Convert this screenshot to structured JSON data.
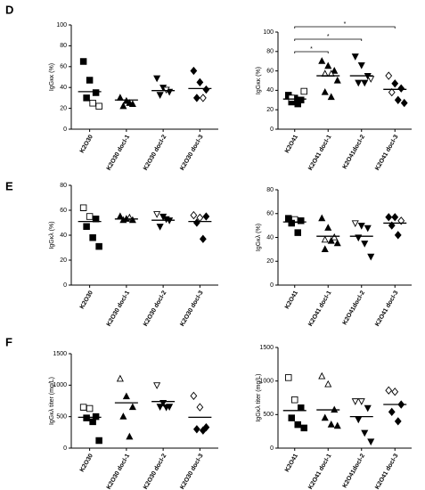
{
  "panel_labels": [
    "D",
    "E",
    "F"
  ],
  "chart_data": [
    {
      "type": "dot",
      "ylabel": "IgGκκ (%)",
      "ylim": [
        0,
        100
      ],
      "yticks": [
        0,
        20,
        40,
        60,
        80,
        100
      ],
      "categories": [
        "K2O30",
        "K2O30 docl-1",
        "K2O30 docl-2",
        "K2O30 docl-3"
      ],
      "markers": [
        "square",
        "triangle-up",
        "triangle-down",
        "diamond"
      ],
      "color": "#000000",
      "points": [
        [
          65,
          47,
          35,
          30,
          25,
          22
        ],
        [
          30,
          27,
          24,
          22,
          25
        ],
        [
          49,
          40,
          36,
          33,
          38
        ],
        [
          56,
          45,
          38,
          30,
          30
        ]
      ],
      "open": [
        [
          false,
          false,
          false,
          false,
          true,
          true
        ],
        [
          false,
          false,
          false,
          false,
          false
        ],
        [
          false,
          false,
          false,
          false,
          true
        ],
        [
          false,
          false,
          false,
          false,
          true
        ]
      ],
      "means": [
        36,
        28,
        37,
        39
      ]
    },
    {
      "type": "dot",
      "ylabel": "IgGκκ (%)",
      "ylim": [
        0,
        100
      ],
      "yticks": [
        0,
        20,
        40,
        60,
        80,
        100
      ],
      "categories": [
        "K2O41",
        "K2O41 docl-1",
        "K2O41docl-2",
        "K2O41 docl-3"
      ],
      "markers": [
        "square",
        "triangle-up",
        "triangle-down",
        "diamond"
      ],
      "color": "#000000",
      "points": [
        [
          35,
          32,
          30,
          28,
          26,
          39,
          32
        ],
        [
          70,
          65,
          60,
          57,
          57,
          50,
          38,
          33
        ],
        [
          75,
          66,
          55,
          48,
          48,
          52
        ],
        [
          55,
          47,
          42,
          38,
          30,
          27
        ]
      ],
      "open": [
        [
          false,
          false,
          false,
          false,
          false,
          true,
          true
        ],
        [
          false,
          false,
          false,
          true,
          true,
          false,
          false,
          false
        ],
        [
          false,
          false,
          false,
          false,
          false,
          true
        ],
        [
          true,
          false,
          false,
          true,
          false,
          false
        ]
      ],
      "means": [
        31,
        55,
        55,
        41
      ],
      "significance": [
        {
          "from": 0,
          "to": 1,
          "label": "*"
        },
        {
          "from": 0,
          "to": 2,
          "label": "*"
        },
        {
          "from": 0,
          "to": 3,
          "label": "*"
        }
      ]
    },
    {
      "type": "dot",
      "ylabel": "IgGκλ (%)",
      "ylim": [
        0,
        80
      ],
      "yticks": [
        0,
        20,
        40,
        60,
        80
      ],
      "categories": [
        "K2O30",
        "K2O30 docl-1",
        "K2O30 docl-2",
        "K2O30 docl-3"
      ],
      "markers": [
        "square",
        "triangle-up",
        "triangle-down",
        "diamond"
      ],
      "color": "#000000",
      "points": [
        [
          62,
          55,
          53,
          47,
          38,
          31
        ],
        [
          55,
          53,
          52,
          52,
          54
        ],
        [
          57,
          55,
          52,
          47,
          53
        ],
        [
          56,
          54,
          55,
          50,
          37
        ]
      ],
      "open": [
        [
          true,
          true,
          false,
          false,
          false,
          false
        ],
        [
          false,
          false,
          false,
          false,
          true
        ],
        [
          true,
          false,
          false,
          false,
          false
        ],
        [
          true,
          true,
          false,
          false,
          false
        ]
      ],
      "means": [
        51,
        53,
        52,
        51
      ]
    },
    {
      "type": "dot",
      "ylabel": "IgGκλ (%)",
      "ylim": [
        0,
        80
      ],
      "yticks": [
        0,
        20,
        40,
        60,
        80
      ],
      "categories": [
        "K2O41",
        "K2O41 docl-1",
        "K2O41docl-2",
        "K2O41 docl-3"
      ],
      "markers": [
        "square",
        "triangle-up",
        "triangle-down",
        "diamond"
      ],
      "color": "#000000",
      "points": [
        [
          56,
          55,
          54,
          52,
          44
        ],
        [
          56,
          48,
          40,
          38,
          37,
          35,
          30
        ],
        [
          52,
          50,
          48,
          40,
          35,
          24
        ],
        [
          57,
          57,
          54,
          50,
          42
        ]
      ],
      "open": [
        [
          false,
          true,
          false,
          false,
          false
        ],
        [
          false,
          false,
          true,
          true,
          false,
          false,
          false
        ],
        [
          true,
          false,
          false,
          false,
          false,
          false
        ],
        [
          false,
          false,
          true,
          false,
          false
        ]
      ],
      "means": [
        53,
        41,
        41,
        52
      ]
    },
    {
      "type": "dot",
      "ylabel": "IgGκλ titer (mg/L)",
      "ylim": [
        0,
        1500
      ],
      "yticks": [
        0,
        500,
        1000,
        1500
      ],
      "categories": [
        "K2O30",
        "K2O30 docl-1",
        "K2O30 docl-2",
        "K2O30 docl-3"
      ],
      "markers": [
        "square",
        "triangle-up",
        "triangle-down",
        "diamond"
      ],
      "color": "#000000",
      "points": [
        [
          650,
          630,
          500,
          480,
          420,
          120
        ],
        [
          1100,
          820,
          650,
          500,
          180
        ],
        [
          1000,
          720,
          660,
          660,
          650
        ],
        [
          830,
          650,
          330,
          300,
          280
        ]
      ],
      "open": [
        [
          true,
          true,
          false,
          false,
          false,
          false
        ],
        [
          true,
          false,
          false,
          false,
          false
        ],
        [
          true,
          false,
          false,
          false,
          false
        ],
        [
          true,
          true,
          false,
          false,
          false
        ]
      ],
      "means": [
        490,
        720,
        740,
        490
      ]
    },
    {
      "type": "dot",
      "ylabel": "IgGκλ titer (mg/L)",
      "ylim": [
        0,
        1500
      ],
      "yticks": [
        0,
        500,
        1000,
        1500
      ],
      "categories": [
        "K2O41",
        "K2O41 docl-1",
        "K2O41docl-2",
        "K2O41 docl-3"
      ],
      "markers": [
        "square",
        "triangle-up",
        "triangle-down",
        "diamond"
      ],
      "color": "#000000",
      "points": [
        [
          1050,
          720,
          600,
          450,
          350,
          300
        ],
        [
          1070,
          950,
          570,
          450,
          350,
          330
        ],
        [
          700,
          700,
          600,
          430,
          230,
          100
        ],
        [
          860,
          840,
          650,
          540,
          400
        ]
      ],
      "open": [
        [
          true,
          true,
          false,
          false,
          false,
          false
        ],
        [
          true,
          true,
          false,
          false,
          false,
          false
        ],
        [
          true,
          true,
          false,
          false,
          false,
          false
        ],
        [
          true,
          true,
          false,
          false,
          false
        ]
      ],
      "means": [
        560,
        570,
        470,
        650
      ]
    }
  ]
}
